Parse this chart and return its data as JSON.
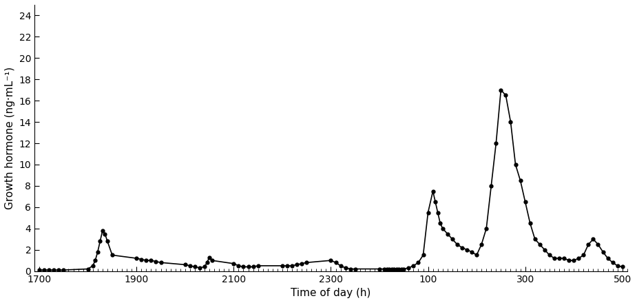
{
  "title": "",
  "xlabel": "Time of day (h)",
  "ylabel": "Growth hormone (ng·mL⁻¹)",
  "line_color": "#000000",
  "marker": "o",
  "markersize": 3.5,
  "linewidth": 1.2,
  "background_color": "#ffffff",
  "ylim": [
    0,
    25
  ],
  "yticks": [
    0,
    2,
    4,
    6,
    8,
    10,
    12,
    14,
    16,
    18,
    20,
    22,
    24
  ],
  "xtick_labels": [
    "1700",
    "1900",
    "2100",
    "2300",
    "100",
    "300",
    "500"
  ],
  "xtick_values": [
    1700,
    1900,
    2100,
    2300,
    2500,
    2700,
    2900
  ],
  "x": [
    1700,
    1710,
    1720,
    1730,
    1740,
    1750,
    1800,
    1810,
    1815,
    1820,
    1825,
    1830,
    1835,
    1840,
    1850,
    1900,
    1910,
    1920,
    1930,
    1940,
    1950,
    2000,
    2010,
    2020,
    2030,
    2040,
    2045,
    2050,
    2055,
    2100,
    2110,
    2120,
    2130,
    2140,
    2150,
    2200,
    2210,
    2220,
    2230,
    2240,
    2250,
    2300,
    2310,
    2320,
    2330,
    2340,
    2350,
    2400,
    2410,
    2415,
    2420,
    2425,
    2430,
    2435,
    2440,
    2445,
    2450,
    2460,
    2470,
    2480,
    2490,
    2500,
    2510,
    2515,
    2520,
    2525,
    2530,
    2540,
    2550,
    2560,
    2570,
    2580,
    2590,
    2600,
    2610,
    2620,
    2630,
    2640,
    2650,
    2660,
    2670,
    2680,
    2690,
    2700,
    2710,
    2720,
    2730,
    2740,
    2750,
    2760,
    2770,
    2780,
    2790,
    2800,
    2810,
    2820,
    2830,
    2840,
    2850,
    2860,
    2870,
    2880,
    2890,
    2900
  ],
  "y": [
    0.1,
    0.1,
    0.1,
    0.1,
    0.1,
    0.1,
    0.2,
    0.5,
    1.0,
    1.8,
    2.8,
    3.8,
    3.5,
    2.8,
    1.5,
    1.2,
    1.1,
    1.0,
    1.0,
    0.9,
    0.8,
    0.6,
    0.5,
    0.4,
    0.3,
    0.4,
    0.8,
    1.3,
    1.0,
    0.7,
    0.5,
    0.4,
    0.4,
    0.4,
    0.5,
    0.5,
    0.5,
    0.5,
    0.6,
    0.7,
    0.8,
    1.0,
    0.8,
    0.5,
    0.3,
    0.2,
    0.2,
    0.2,
    0.2,
    0.2,
    0.2,
    0.2,
    0.2,
    0.2,
    0.2,
    0.2,
    0.2,
    0.3,
    0.5,
    0.8,
    1.5,
    5.5,
    7.5,
    6.5,
    5.5,
    4.5,
    4.0,
    3.5,
    3.0,
    2.5,
    2.2,
    2.0,
    1.8,
    1.5,
    2.5,
    4.0,
    8.0,
    12.0,
    17.0,
    16.5,
    14.0,
    10.0,
    8.5,
    6.5,
    4.5,
    3.0,
    2.5,
    2.0,
    1.5,
    1.2,
    1.2,
    1.2,
    1.0,
    1.0,
    1.2,
    1.5,
    2.5,
    3.0,
    2.5,
    1.8,
    1.2,
    0.8,
    0.5,
    0.4
  ]
}
